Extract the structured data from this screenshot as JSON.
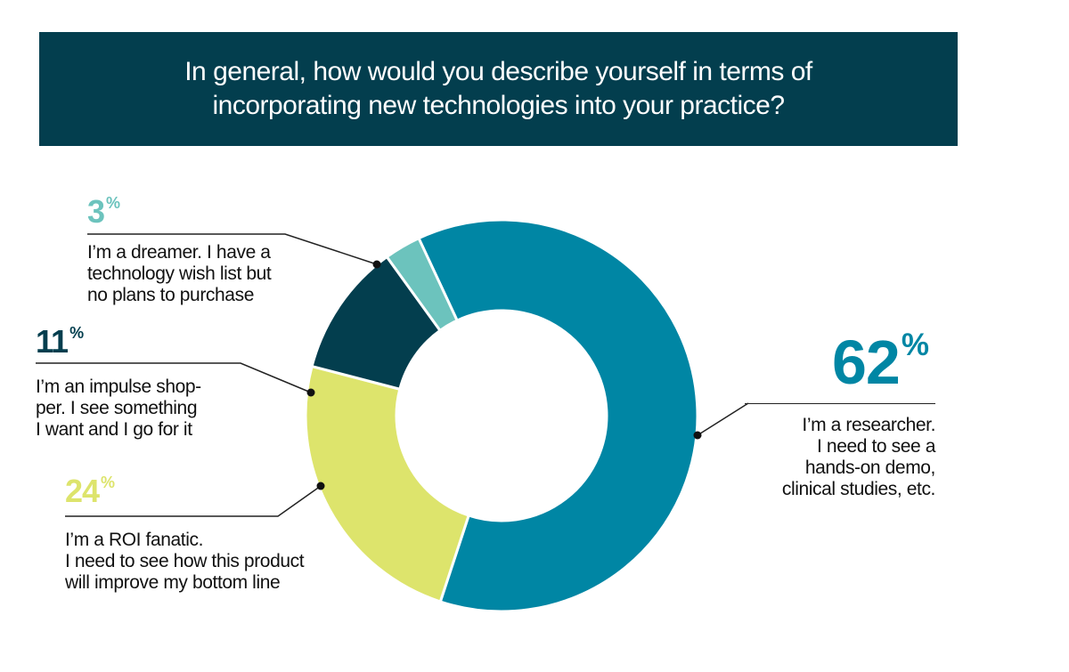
{
  "header": {
    "title": "In general, how would you describe yourself in terms of incorporating new technologies into your practice?",
    "background": "#033e4e"
  },
  "chart_data": {
    "type": "pie",
    "title": "In general, how would you describe yourself in terms of incorporating new technologies into your practice?",
    "slices": [
      {
        "value": 62,
        "value_label": "62",
        "unit": "%",
        "color": "#0086a4",
        "label_lines": [
          "I’m a researcher.",
          "I need to see a",
          "hands-on demo,",
          "clinical studies, etc."
        ]
      },
      {
        "value": 24,
        "value_label": "24",
        "unit": "%",
        "color": "#dde46c",
        "label_lines": [
          "I’m a ROI fanatic.",
          "I need to see how this product",
          "will improve my bottom line"
        ]
      },
      {
        "value": 11,
        "value_label": "11",
        "unit": "%",
        "color": "#033e4e",
        "label_lines": [
          "I’m an impulse shop-",
          "per. I see something",
          "I want and I go for it"
        ]
      },
      {
        "value": 3,
        "value_label": "3",
        "unit": "%",
        "color": "#6cc3bd",
        "label_lines": [
          "I’m a dreamer. I have a",
          "technology wish list but",
          "no plans to purchase"
        ]
      }
    ]
  }
}
